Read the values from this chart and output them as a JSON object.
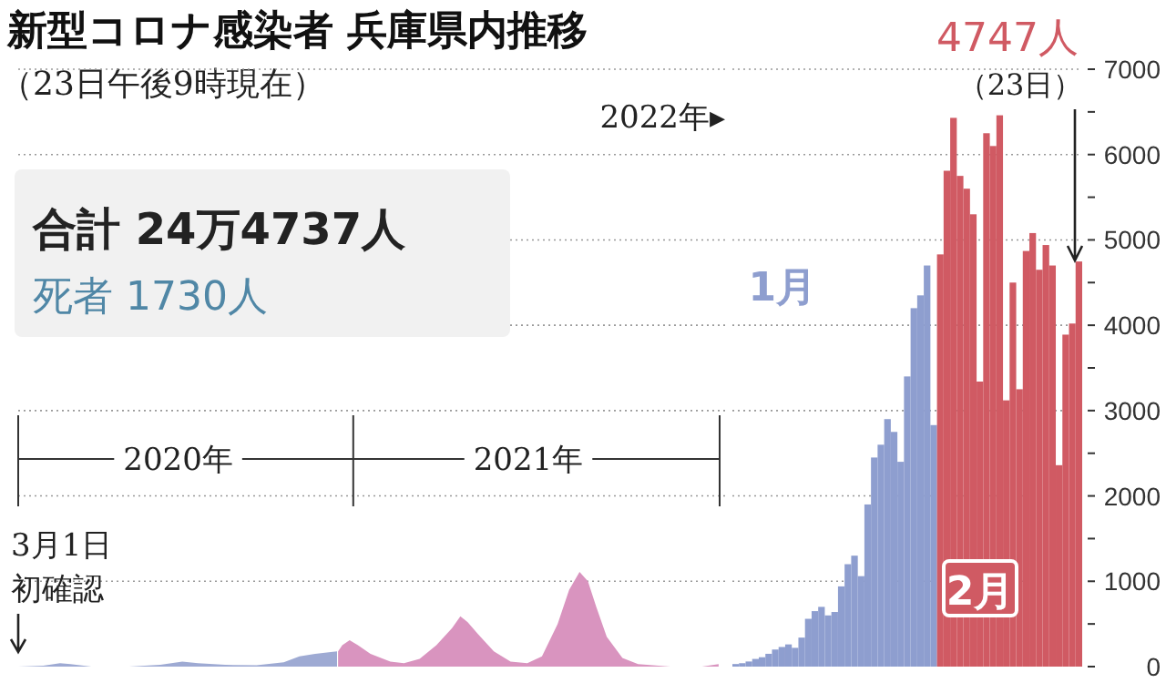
{
  "chart_data": [
    {
      "type": "area",
      "title": "新型コロナ感染者 兵庫県内推移",
      "subtitle": "（23日午後9時現在）",
      "annotations": [
        "合計 24万4737人",
        "死者 1730人",
        "3月1日",
        "初確認"
      ],
      "xlim": [
        "2020-03-01",
        "2022-01-01"
      ],
      "xticks": [
        {
          "value": "2020-08-01",
          "label": "2020年"
        },
        {
          "value": "2021-07-02",
          "label": "2021年"
        }
      ],
      "ylim": [
        0,
        7000
      ],
      "yticks": [
        0,
        1000,
        2000,
        3000,
        4000,
        5000,
        6000,
        7000
      ],
      "grid": "y",
      "tick_labels": "x",
      "series": [
        {
          "color": "#9eaad3",
          "x": [
            "2020-03-01",
            "2020-03-25",
            "2020-04-10",
            "2020-04-20",
            "2020-05-10",
            "2020-06-15",
            "2020-07-15",
            "2020-08-05",
            "2020-08-20",
            "2020-09-15",
            "2020-10-15",
            "2020-11-10",
            "2020-11-25",
            "2020-12-10",
            "2020-12-25",
            "2020-12-31"
          ],
          "values": [
            0,
            10,
            40,
            30,
            0,
            0,
            20,
            60,
            40,
            20,
            15,
            50,
            120,
            150,
            170,
            180
          ]
        },
        {
          "color": "#d994bf",
          "x": [
            "2021-01-01",
            "2021-01-05",
            "2021-01-12",
            "2021-01-20",
            "2021-02-01",
            "2021-02-20",
            "2021-03-05",
            "2021-03-20",
            "2021-04-05",
            "2021-04-20",
            "2021-04-28",
            "2021-05-05",
            "2021-05-15",
            "2021-05-30",
            "2021-06-15",
            "2021-07-01",
            "2021-07-15",
            "2021-07-30",
            "2021-08-10",
            "2021-08-20",
            "2021-08-28",
            "2021-09-05",
            "2021-09-15",
            "2021-09-30",
            "2021-10-15",
            "2021-11-15",
            "2021-12-15",
            "2021-12-31"
          ],
          "values": [
            180,
            250,
            310,
            250,
            150,
            60,
            40,
            90,
            250,
            450,
            590,
            520,
            380,
            180,
            60,
            40,
            120,
            500,
            900,
            1110,
            1000,
            700,
            350,
            100,
            30,
            0,
            0,
            30
          ]
        }
      ]
    },
    {
      "type": "bar",
      "annotations": [
        "2022年▸",
        "1月",
        "2月",
        "4747人",
        "（23日）"
      ],
      "categories": [
        null,
        null,
        null,
        null,
        null,
        null,
        null,
        null,
        null,
        null,
        null,
        null,
        null,
        null,
        null,
        null,
        null,
        null,
        null,
        null,
        null,
        null,
        null,
        null,
        null,
        null,
        null,
        null,
        null,
        null,
        null,
        null,
        null,
        null,
        null,
        null,
        null,
        null,
        null,
        null,
        null,
        null,
        null,
        null,
        null,
        null,
        null,
        null,
        null,
        null,
        null,
        null,
        null
      ],
      "ylim": [
        0,
        7000
      ],
      "yticks": [
        0,
        {
          "value": 500,
          "label": null
        },
        1000,
        {
          "value": 1500,
          "label": null
        },
        2000,
        {
          "value": 2500,
          "label": null
        },
        3000,
        {
          "value": 3500,
          "label": null
        },
        4000,
        {
          "value": 4500,
          "label": null
        },
        5000,
        {
          "value": 5500,
          "label": null
        },
        6000,
        {
          "value": 6500,
          "label": null
        },
        7000
      ],
      "grid": "y",
      "tick_labels": "y",
      "values": [
        30,
        40,
        60,
        90,
        110,
        150,
        200,
        230,
        260,
        220,
        340,
        560,
        650,
        700,
        600,
        640,
        940,
        1200,
        1300,
        1060,
        1900,
        2450,
        2600,
        2900,
        2750,
        2400,
        3400,
        4200,
        4350,
        4700,
        2830,
        4830,
        5810,
        6430,
        5750,
        5600,
        5300,
        3340,
        6250,
        6100,
        6460,
        3120,
        4500,
        3250,
        4870,
        5080,
        4650,
        4940,
        4700,
        2360,
        3890,
        4020,
        4747
      ],
      "colors": [
        "#8e9ecf",
        "#8e9ecf",
        "#8e9ecf",
        "#8e9ecf",
        "#8e9ecf",
        "#8e9ecf",
        "#8e9ecf",
        "#8e9ecf",
        "#8e9ecf",
        "#8e9ecf",
        "#8e9ecf",
        "#8e9ecf",
        "#8e9ecf",
        "#8e9ecf",
        "#8e9ecf",
        "#8e9ecf",
        "#8e9ecf",
        "#8e9ecf",
        "#8e9ecf",
        "#8e9ecf",
        "#8e9ecf",
        "#8e9ecf",
        "#8e9ecf",
        "#8e9ecf",
        "#8e9ecf",
        "#8e9ecf",
        "#8e9ecf",
        "#8e9ecf",
        "#8e9ecf",
        "#8e9ecf",
        "#8e9ecf",
        "#d05a63",
        "#d05a63",
        "#d05a63",
        "#d05a63",
        "#d05a63",
        "#d05a63",
        "#d05a63",
        "#d05a63",
        "#d05a63",
        "#d05a63",
        "#d05a63",
        "#d05a63",
        "#d05a63",
        "#d05a63",
        "#d05a63",
        "#d05a63",
        "#d05a63",
        "#d05a63",
        "#d05a63",
        "#d05a63",
        "#d05a63",
        "#d05a63"
      ]
    }
  ]
}
